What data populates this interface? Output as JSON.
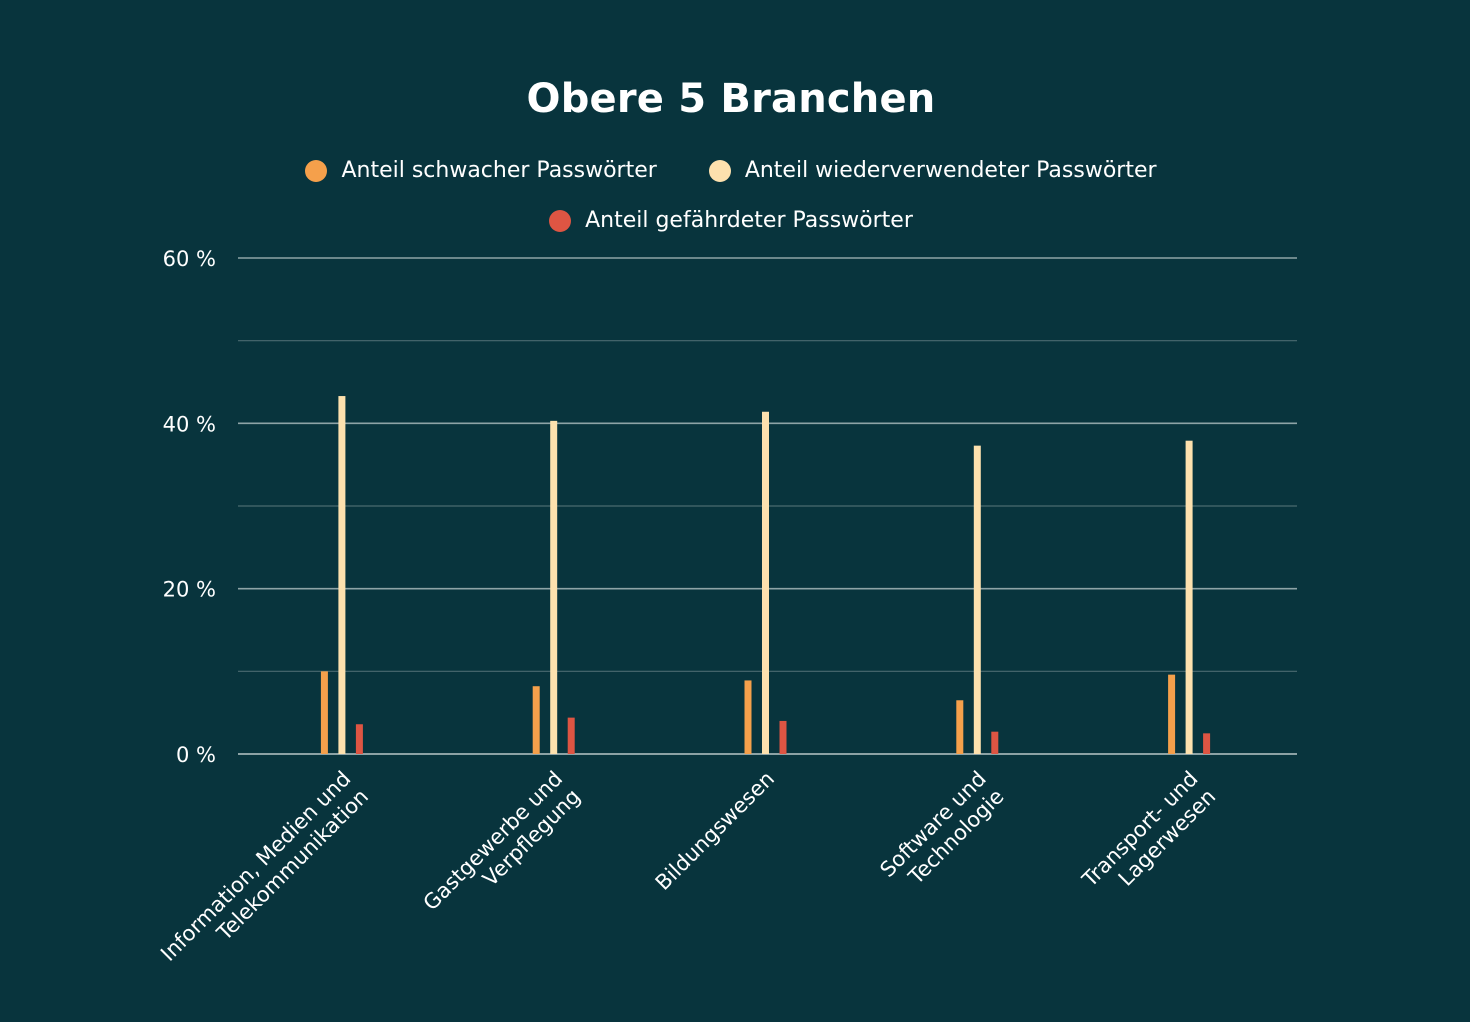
{
  "chart_data": {
    "type": "bar",
    "title": "Obere 5 Branchen",
    "xlabel": "",
    "ylabel": "",
    "ylim": [
      0,
      60
    ],
    "yticks": [
      {
        "value": 0,
        "label": "0 %"
      },
      {
        "value": 20,
        "label": "20 %"
      },
      {
        "value": 40,
        "label": "40 %"
      },
      {
        "value": 60,
        "label": "60 %"
      }
    ],
    "minor_gridlines": [
      10,
      30,
      50
    ],
    "grid": true,
    "legend_position": "top-center",
    "categories": [
      [
        "Information, Medien und",
        "Telekommunikation"
      ],
      [
        "Gastgewerbe und",
        "Verpflegung"
      ],
      [
        "Bildungswesen"
      ],
      [
        "Software und",
        "Technologie"
      ],
      [
        "Transport- und",
        "Lagerwesen"
      ]
    ],
    "series": [
      {
        "name": "Anteil schwacher Passwörter",
        "color": "#f5a04b",
        "values": [
          10.0,
          8.2,
          8.9,
          6.5,
          9.6
        ]
      },
      {
        "name": "Anteil wiederverwendeter Passwörter",
        "color": "#fde1ae",
        "values": [
          43.3,
          40.3,
          41.4,
          37.3,
          37.9
        ]
      },
      {
        "name": "Anteil gefährdeter Passwörter",
        "color": "#de5543",
        "values": [
          3.6,
          4.4,
          4.0,
          2.7,
          2.5
        ]
      }
    ]
  },
  "colors": {
    "background": "#08343d",
    "axis": "#b7c6c8",
    "grid_major": "#8ea4a7",
    "grid_minor": "#4a6a70",
    "text": "#ffffff"
  }
}
